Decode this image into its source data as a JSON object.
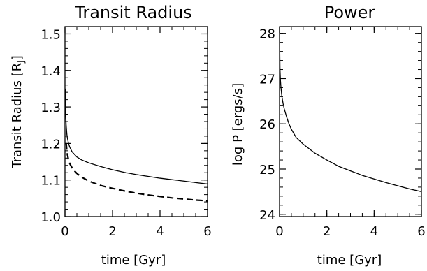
{
  "chart_data": [
    {
      "type": "line",
      "title": "Transit Radius",
      "xlabel": "time [Gyr]",
      "ylabel_main": "Transit Radius [R",
      "ylabel_sub": "J",
      "ylabel_close": "]",
      "xlim": [
        0,
        6
      ],
      "ylim": [
        1.0,
        1.52
      ],
      "xticks": [
        0,
        2,
        4,
        6
      ],
      "xtick_labels": [
        "0",
        "2",
        "4",
        "6"
      ],
      "yticks": [
        1.0,
        1.1,
        1.2,
        1.3,
        1.4,
        1.5
      ],
      "ytick_labels": [
        "1.0",
        "1.1",
        "1.2",
        "1.3",
        "1.4",
        "1.5"
      ],
      "grid": false,
      "series": [
        {
          "style": "solid",
          "x": [
            0.01,
            0.03,
            0.05,
            0.08,
            0.1,
            0.15,
            0.2,
            0.3,
            0.4,
            0.5,
            0.7,
            1.0,
            1.5,
            2.0,
            2.5,
            3.0,
            3.5,
            4.0,
            4.5,
            5.0,
            5.5,
            6.0
          ],
          "y": [
            1.35,
            1.28,
            1.25,
            1.225,
            1.215,
            1.2,
            1.19,
            1.177,
            1.17,
            1.163,
            1.155,
            1.147,
            1.137,
            1.128,
            1.121,
            1.115,
            1.11,
            1.105,
            1.101,
            1.097,
            1.093,
            1.089
          ]
        },
        {
          "style": "dashed",
          "x": [
            0.05,
            0.08,
            0.1,
            0.15,
            0.2,
            0.3,
            0.4,
            0.5,
            0.7,
            1.0,
            1.5,
            2.0,
            2.5,
            3.0,
            3.5,
            4.0,
            4.5,
            5.0,
            5.5,
            6.0
          ],
          "y": [
            1.2,
            1.18,
            1.17,
            1.155,
            1.145,
            1.133,
            1.125,
            1.118,
            1.108,
            1.097,
            1.085,
            1.077,
            1.07,
            1.064,
            1.059,
            1.055,
            1.051,
            1.048,
            1.045,
            1.043
          ]
        }
      ]
    },
    {
      "type": "line",
      "title": "Power",
      "xlabel": "time [Gyr]",
      "ylabel": "log P [ergs/s]",
      "xlim": [
        0,
        6
      ],
      "ylim": [
        23.95,
        28.15
      ],
      "xticks": [
        0,
        2,
        4,
        6
      ],
      "xtick_labels": [
        "0",
        "2",
        "4",
        "6"
      ],
      "yticks": [
        24,
        25,
        26,
        27,
        28
      ],
      "ytick_labels": [
        "24",
        "25",
        "26",
        "27",
        "28"
      ],
      "grid": false,
      "series": [
        {
          "style": "solid",
          "x": [
            0.01,
            0.02,
            0.04,
            0.06,
            0.1,
            0.15,
            0.2,
            0.3,
            0.4,
            0.5,
            0.7,
            1.0,
            1.5,
            2.0,
            2.5,
            3.0,
            3.5,
            4.0,
            4.5,
            5.0,
            5.5,
            6.0
          ],
          "y": [
            27.6,
            27.2,
            26.95,
            26.8,
            26.6,
            26.45,
            26.33,
            26.15,
            26.0,
            25.88,
            25.7,
            25.55,
            25.35,
            25.2,
            25.06,
            24.96,
            24.86,
            24.78,
            24.7,
            24.63,
            24.56,
            24.5
          ]
        }
      ]
    }
  ]
}
